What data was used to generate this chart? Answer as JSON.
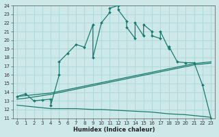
{
  "xlabel": "Humidex (Indice chaleur)",
  "xlim": [
    -0.5,
    23.5
  ],
  "ylim": [
    11,
    24
  ],
  "xticks": [
    0,
    1,
    2,
    3,
    4,
    5,
    6,
    7,
    8,
    9,
    10,
    11,
    12,
    13,
    14,
    15,
    16,
    17,
    18,
    19,
    20,
    21,
    22,
    23
  ],
  "yticks": [
    11,
    12,
    13,
    14,
    15,
    16,
    17,
    18,
    19,
    20,
    21,
    22,
    23,
    24
  ],
  "bg_color": "#cce8e8",
  "grid_color": "#b0d8d8",
  "line_color": "#1a7a6e",
  "main_x": [
    0,
    1,
    2,
    3,
    4,
    4,
    5,
    5,
    6,
    7,
    8,
    9,
    9,
    10,
    11,
    11,
    12,
    12,
    13,
    13,
    14,
    14,
    15,
    15,
    16,
    16,
    17,
    17,
    18,
    18,
    19,
    20,
    21,
    22,
    23
  ],
  "main_y": [
    13.5,
    13.8,
    13.0,
    13.1,
    13.2,
    12.5,
    16.0,
    17.5,
    18.5,
    19.5,
    19.2,
    21.8,
    18.0,
    22.0,
    23.2,
    23.7,
    24.0,
    23.5,
    22.2,
    21.5,
    20.2,
    22.0,
    20.5,
    21.8,
    21.0,
    20.5,
    20.2,
    21.0,
    19.0,
    19.3,
    17.5,
    17.4,
    17.4,
    14.8,
    11.0
  ],
  "low_x": [
    0,
    1,
    2,
    3,
    4,
    5,
    6,
    7,
    8,
    9,
    10,
    11,
    12,
    13,
    14,
    15,
    16,
    17,
    18,
    19,
    20,
    21,
    22,
    23
  ],
  "low_y": [
    12.5,
    12.4,
    12.3,
    12.2,
    12.1,
    12.1,
    12.1,
    12.1,
    12.05,
    12.0,
    12.0,
    11.95,
    11.9,
    11.85,
    11.8,
    11.75,
    11.7,
    11.6,
    11.5,
    11.45,
    11.4,
    11.3,
    11.2,
    11.1
  ],
  "upper1_x": [
    0,
    1,
    2,
    3,
    4,
    5,
    6,
    7,
    8,
    9,
    10,
    11,
    12,
    13,
    14,
    15,
    16,
    17,
    18,
    19,
    20,
    21,
    22,
    23
  ],
  "upper1_y": [
    13.5,
    13.6,
    13.7,
    13.8,
    13.9,
    14.1,
    14.3,
    14.5,
    14.7,
    14.9,
    15.1,
    15.3,
    15.5,
    15.7,
    15.9,
    16.1,
    16.3,
    16.5,
    16.7,
    16.9,
    17.1,
    17.3,
    17.4,
    17.5
  ],
  "upper2_x": [
    0,
    1,
    2,
    3,
    4,
    5,
    6,
    7,
    8,
    9,
    10,
    11,
    12,
    13,
    14,
    15,
    16,
    17,
    18,
    19,
    20,
    21,
    22,
    23
  ],
  "upper2_y": [
    13.2,
    13.3,
    13.45,
    13.6,
    13.75,
    13.95,
    14.15,
    14.35,
    14.55,
    14.75,
    14.95,
    15.15,
    15.35,
    15.55,
    15.75,
    15.95,
    16.15,
    16.35,
    16.55,
    16.75,
    16.95,
    17.15,
    17.25,
    17.35
  ]
}
